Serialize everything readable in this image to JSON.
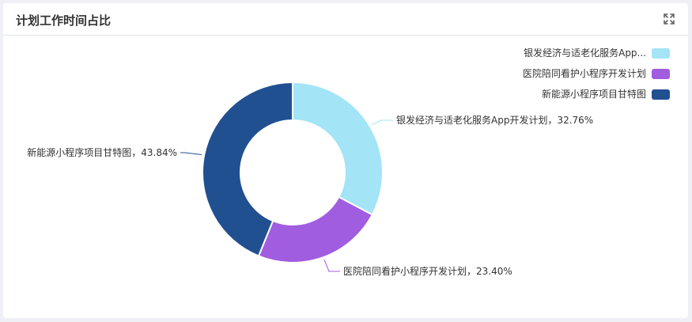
{
  "panel": {
    "title": "计划工作时间占比",
    "expand_icon": "expand-icon"
  },
  "chart_data": {
    "type": "pie",
    "variant": "donut",
    "legend_position": "top-right",
    "slices": [
      {
        "name": "银发经济与适老化服务App开发计划",
        "legend_label": "银发经济与适老化服务App...",
        "value": 32.76,
        "label": "银发经济与适老化服务App开发计划，32.76%",
        "color": "#a3e4f7"
      },
      {
        "name": "医院陪同看护小程序开发计划",
        "legend_label": "医院陪同看护小程序开发计划",
        "value": 23.4,
        "label": "医院陪同看护小程序开发计划，23.40%",
        "color": "#a15ddf"
      },
      {
        "name": "新能源小程序项目甘特图",
        "legend_label": "新能源小程序项目甘特图",
        "value": 43.84,
        "label": "新能源小程序项目甘特图，43.84%",
        "color": "#215091"
      }
    ]
  }
}
